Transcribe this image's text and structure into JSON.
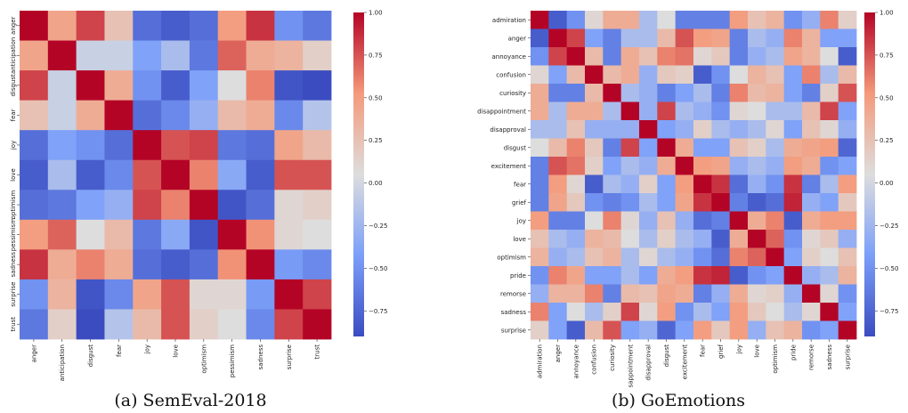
{
  "chart_data": [
    {
      "type": "heatmap",
      "caption": "(a) SemEval-2018",
      "labels": [
        "anger",
        "anticipation",
        "disgust",
        "fear",
        "joy",
        "love",
        "optimism",
        "pessimism",
        "sadness",
        "surprise",
        "trust"
      ],
      "vmin": -0.9,
      "vmax": 1.0,
      "colorbar_ticks": [
        1.0,
        0.75,
        0.5,
        0.25,
        0.0,
        -0.25,
        -0.5,
        -0.75
      ],
      "colorbar_tick_labels": [
        "1.00",
        "0.75",
        "0.50",
        "0.25",
        "0.00",
        "−0.25",
        "−0.50",
        "−0.75"
      ],
      "matrix": [
        [
          1.0,
          0.45,
          0.8,
          0.25,
          -0.7,
          -0.8,
          -0.7,
          0.5,
          0.85,
          -0.5,
          -0.65
        ],
        [
          0.45,
          1.0,
          -0.05,
          -0.05,
          -0.4,
          -0.2,
          -0.65,
          0.7,
          0.4,
          0.35,
          0.15
        ],
        [
          0.8,
          -0.05,
          1.0,
          0.4,
          -0.5,
          -0.8,
          -0.4,
          0.05,
          0.6,
          -0.85,
          -0.9
        ],
        [
          0.25,
          -0.05,
          0.4,
          1.0,
          -0.7,
          -0.55,
          -0.3,
          0.3,
          0.4,
          -0.55,
          -0.15
        ],
        [
          -0.7,
          -0.4,
          -0.5,
          -0.7,
          1.0,
          0.75,
          0.8,
          -0.65,
          -0.7,
          0.45,
          0.3
        ],
        [
          -0.8,
          -0.2,
          -0.8,
          -0.55,
          0.75,
          1.0,
          0.6,
          -0.35,
          -0.8,
          0.75,
          0.75
        ],
        [
          -0.7,
          -0.65,
          -0.4,
          -0.3,
          0.8,
          0.6,
          1.0,
          -0.85,
          -0.7,
          0.1,
          0.15
        ],
        [
          0.5,
          0.7,
          0.05,
          0.3,
          -0.65,
          -0.35,
          -0.85,
          1.0,
          0.55,
          0.1,
          0.05
        ],
        [
          0.85,
          0.4,
          0.6,
          0.4,
          -0.7,
          -0.8,
          -0.7,
          0.55,
          1.0,
          -0.45,
          -0.55
        ],
        [
          -0.5,
          0.35,
          -0.85,
          -0.55,
          0.45,
          0.75,
          0.1,
          0.1,
          -0.45,
          1.0,
          0.8
        ],
        [
          -0.65,
          0.15,
          -0.9,
          -0.15,
          0.3,
          0.75,
          0.15,
          0.05,
          -0.55,
          0.8,
          1.0
        ]
      ]
    },
    {
      "type": "heatmap",
      "caption": "(b) GoEmotions",
      "labels": [
        "admiration",
        "anger",
        "annoyance",
        "confusion",
        "curiosity",
        "disappointment",
        "disapproval",
        "disgust",
        "excitement",
        "fear",
        "grief",
        "joy",
        "love",
        "optimism",
        "pride",
        "remorse",
        "sadness",
        "surprise"
      ],
      "x_tick_labels": [
        "admiration",
        "anger",
        "annoyance",
        "confusion",
        "curiosity",
        "sappointment",
        "disapproval",
        "disgust",
        "excitement",
        "fear",
        "grief",
        "joy",
        "love",
        "optimism",
        "pride",
        "remorse",
        "sadness",
        "surprise"
      ],
      "vmin": -0.9,
      "vmax": 1.0,
      "colorbar_ticks": [
        1.0,
        0.75,
        0.5,
        0.25,
        0.0,
        -0.25,
        -0.5,
        -0.75
      ],
      "colorbar_tick_labels": [
        "1.00",
        "0.75",
        "0.50",
        "0.25",
        "0.00",
        "−0.25",
        "−0.50",
        "−0.75"
      ],
      "matrix": [
        [
          1.0,
          -0.8,
          -0.5,
          0.1,
          0.4,
          0.4,
          -0.2,
          0.05,
          -0.6,
          -0.6,
          -0.6,
          0.5,
          0.25,
          0.35,
          -0.5,
          -0.3,
          0.6,
          0.15
        ],
        [
          -0.8,
          1.0,
          0.8,
          -0.4,
          -0.6,
          -0.2,
          -0.2,
          0.3,
          0.75,
          0.5,
          0.45,
          -0.6,
          -0.2,
          -0.3,
          0.6,
          0.35,
          -0.4,
          -0.4
        ],
        [
          -0.5,
          0.8,
          1.0,
          0.3,
          -0.6,
          0.4,
          0.25,
          0.6,
          0.65,
          0.1,
          0.2,
          -0.6,
          -0.3,
          -0.2,
          0.45,
          0.35,
          0.05,
          -0.8
        ],
        [
          0.1,
          -0.4,
          0.3,
          1.0,
          0.3,
          0.4,
          -0.3,
          0.2,
          0.15,
          -0.8,
          -0.5,
          0.05,
          0.35,
          0.25,
          -0.4,
          0.6,
          -0.2,
          0.3
        ],
        [
          0.4,
          -0.6,
          -0.6,
          0.3,
          1.0,
          -0.2,
          -0.3,
          -0.6,
          -0.4,
          -0.2,
          -0.6,
          0.6,
          0.3,
          0.35,
          -0.4,
          -0.6,
          0.15,
          0.75
        ],
        [
          0.4,
          -0.2,
          0.4,
          0.4,
          -0.2,
          1.0,
          -0.3,
          0.8,
          -0.2,
          -0.3,
          -0.5,
          0.1,
          0.05,
          -0.2,
          -0.2,
          0.3,
          0.8,
          -0.4
        ],
        [
          -0.2,
          -0.2,
          0.25,
          -0.3,
          -0.3,
          -0.3,
          1.0,
          -0.4,
          -0.3,
          0.15,
          -0.2,
          -0.3,
          -0.2,
          0.1,
          -0.4,
          0.25,
          0.1,
          -0.3
        ],
        [
          0.05,
          0.3,
          0.6,
          0.2,
          -0.6,
          0.8,
          -0.4,
          1.0,
          0.4,
          -0.4,
          -0.4,
          0.25,
          0.15,
          -0.2,
          0.4,
          0.45,
          0.5,
          -0.75
        ],
        [
          -0.6,
          0.75,
          0.65,
          0.15,
          -0.4,
          -0.2,
          -0.3,
          0.4,
          1.0,
          0.5,
          0.45,
          -0.3,
          -0.2,
          -0.3,
          0.5,
          0.4,
          -0.5,
          -0.4
        ],
        [
          -0.6,
          0.5,
          0.1,
          -0.8,
          -0.2,
          -0.3,
          0.15,
          -0.4,
          0.5,
          1.0,
          0.85,
          -0.7,
          -0.3,
          -0.5,
          0.85,
          -0.6,
          -0.2,
          0.5
        ],
        [
          -0.6,
          0.45,
          0.2,
          -0.5,
          -0.6,
          -0.5,
          -0.2,
          -0.4,
          0.45,
          0.85,
          1.0,
          -0.6,
          -0.8,
          -0.7,
          0.9,
          -0.3,
          -0.4,
          0.2
        ],
        [
          0.5,
          -0.6,
          -0.6,
          0.05,
          0.6,
          0.1,
          -0.3,
          0.25,
          -0.3,
          -0.7,
          -0.6,
          1.0,
          0.4,
          0.6,
          -0.8,
          0.4,
          0.5,
          0.5
        ],
        [
          0.25,
          -0.2,
          -0.3,
          0.35,
          0.3,
          0.05,
          -0.2,
          0.15,
          -0.2,
          -0.3,
          -0.8,
          0.4,
          1.0,
          0.7,
          -0.5,
          0.1,
          0.2,
          -0.3
        ],
        [
          0.35,
          -0.3,
          -0.2,
          0.25,
          0.35,
          -0.2,
          0.1,
          -0.2,
          -0.3,
          -0.5,
          -0.7,
          0.6,
          0.7,
          1.0,
          -0.4,
          0.15,
          0.05,
          0.25
        ],
        [
          -0.5,
          0.6,
          0.45,
          -0.4,
          -0.4,
          -0.2,
          -0.4,
          0.4,
          0.5,
          0.85,
          0.9,
          -0.8,
          -0.5,
          -0.4,
          1.0,
          -0.3,
          -0.2,
          0.35
        ],
        [
          -0.3,
          0.35,
          0.35,
          0.6,
          -0.6,
          0.3,
          0.25,
          0.45,
          0.4,
          -0.6,
          -0.3,
          0.4,
          0.1,
          0.15,
          -0.3,
          1.0,
          0.1,
          -0.5
        ],
        [
          0.6,
          -0.4,
          0.05,
          -0.2,
          0.15,
          0.8,
          0.1,
          0.5,
          -0.5,
          -0.2,
          -0.4,
          0.5,
          0.2,
          0.05,
          -0.2,
          0.1,
          1.0,
          -0.4
        ],
        [
          0.15,
          -0.4,
          -0.8,
          0.3,
          0.75,
          -0.4,
          -0.3,
          -0.75,
          -0.4,
          0.5,
          0.2,
          0.5,
          -0.3,
          0.25,
          0.35,
          -0.5,
          -0.4,
          1.0
        ]
      ]
    }
  ]
}
